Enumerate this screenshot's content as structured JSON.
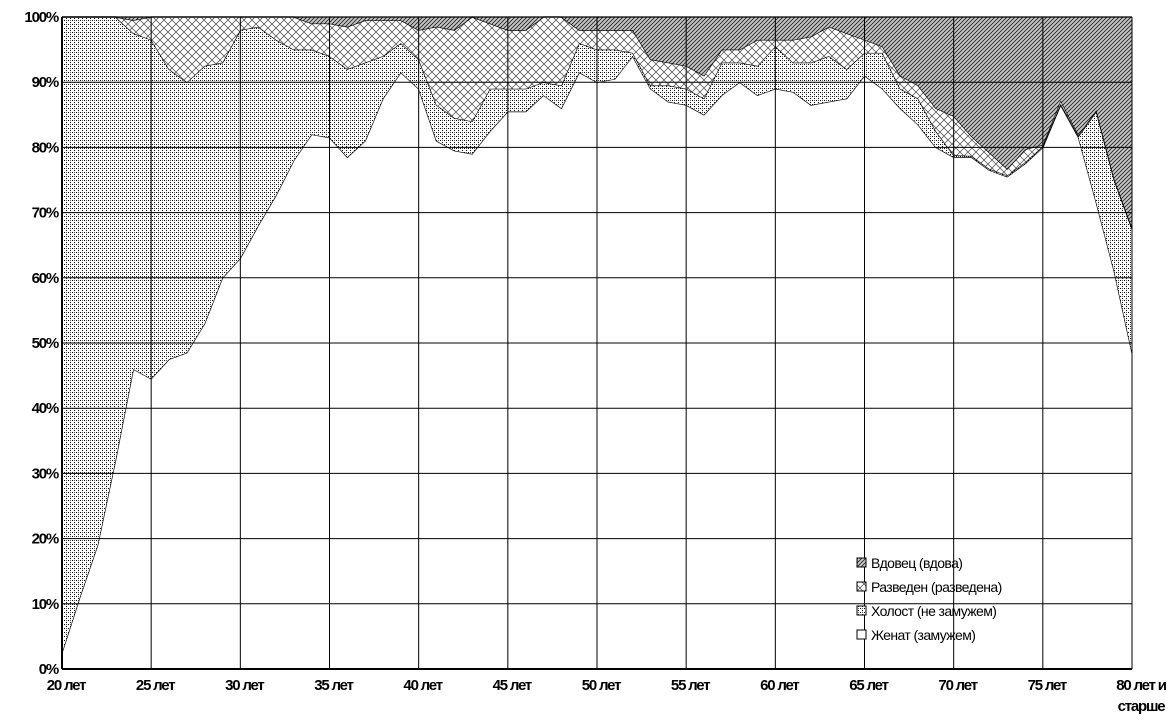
{
  "chart_data": {
    "type": "area",
    "stacked": "percent",
    "ylim": [
      0,
      100
    ],
    "y_ticks": [
      "0%",
      "10%",
      "20%",
      "30%",
      "40%",
      "50%",
      "60%",
      "70%",
      "80%",
      "90%",
      "100%"
    ],
    "x_tick_labels": [
      {
        "age": 20,
        "label": "20 лет"
      },
      {
        "age": 25,
        "label": "25 лет"
      },
      {
        "age": 30,
        "label": "30 лет"
      },
      {
        "age": 35,
        "label": "35 лет"
      },
      {
        "age": 40,
        "label": "40 лет"
      },
      {
        "age": 45,
        "label": "45 лет"
      },
      {
        "age": 50,
        "label": "50 лет"
      },
      {
        "age": 55,
        "label": "55 лет"
      },
      {
        "age": 60,
        "label": "60 лет"
      },
      {
        "age": 65,
        "label": "65 лет"
      },
      {
        "age": 70,
        "label": "70 лет"
      },
      {
        "age": 75,
        "label": "75 лет"
      },
      {
        "age": 80,
        "label": "80 лет и",
        "label2": "старше"
      }
    ],
    "grid": "horizontal and vertical",
    "legend_position": "bottom-right",
    "x": [
      20,
      21,
      22,
      23,
      24,
      25,
      26,
      27,
      28,
      29,
      30,
      31,
      32,
      33,
      34,
      35,
      36,
      37,
      38,
      39,
      40,
      41,
      42,
      43,
      44,
      45,
      46,
      47,
      48,
      49,
      50,
      51,
      52,
      53,
      54,
      55,
      56,
      57,
      58,
      59,
      60,
      61,
      62,
      63,
      64,
      65,
      66,
      67,
      68,
      69,
      70,
      71,
      72,
      73,
      74,
      75,
      76,
      77,
      78,
      79,
      80
    ],
    "series": [
      {
        "name": "Женат (замужем)",
        "pattern": "white",
        "values": [
          2.5,
          11,
          19,
          32,
          46,
          44.5,
          47.5,
          48.5,
          53,
          60,
          63,
          68,
          73,
          78,
          82,
          81.5,
          78.5,
          81,
          87.5,
          91.5,
          89,
          81,
          79.5,
          79,
          82.5,
          85.5,
          85.5,
          88,
          86,
          91.5,
          90,
          90.5,
          94,
          89,
          87,
          86.5,
          85,
          88,
          90,
          88,
          89,
          88.5,
          86.5,
          87,
          87.5,
          91,
          89,
          86,
          83.5,
          80,
          78.5,
          78.5,
          76.5,
          75.5,
          77.5,
          80,
          86.5,
          81.5,
          71.5,
          61,
          48.5
        ]
      },
      {
        "name": "Холост (не замужем)",
        "pattern": "dots",
        "values": [
          97.5,
          89,
          81,
          68,
          51.5,
          52,
          44.5,
          41.5,
          39.5,
          33,
          35,
          30.5,
          24,
          17,
          13,
          12.5,
          13.5,
          12,
          6.5,
          4.5,
          4.5,
          5.5,
          5,
          5,
          6.5,
          3.5,
          3.5,
          2,
          3.5,
          4.5,
          5,
          4.5,
          0.5,
          0.5,
          2.5,
          2.5,
          2.5,
          5,
          3,
          4.5,
          6.5,
          4.5,
          6.5,
          7,
          4.5,
          3.5,
          5.5,
          3,
          4,
          2.5,
          0.3,
          0.2,
          0.2,
          0.2,
          0.2,
          0.2,
          0.2,
          0.2,
          14,
          14,
          19
        ]
      },
      {
        "name": "Разведен (разведена)",
        "pattern": "diag-cross",
        "values": [
          0,
          0,
          0,
          0,
          2,
          3.5,
          8,
          10,
          7.5,
          7,
          2,
          1.5,
          3.5,
          5,
          4,
          5,
          6.5,
          6.5,
          5.5,
          3.5,
          4.5,
          12,
          13.5,
          16,
          10,
          9,
          9,
          10,
          10.5,
          2,
          3,
          3,
          3.5,
          4,
          3.5,
          3.5,
          3.5,
          2,
          2,
          4,
          1,
          3.5,
          4,
          4.5,
          5.5,
          2,
          1,
          2,
          2,
          3.5,
          6,
          3,
          2.5,
          1,
          2,
          0.2,
          0.5,
          0.2,
          0.2,
          0.2,
          0.2
        ]
      },
      {
        "name": "Вдовец (вдова)",
        "pattern": "hatch",
        "values": [
          0,
          0,
          0,
          0,
          0.5,
          0,
          0,
          0,
          0,
          0,
          0,
          0,
          0,
          0,
          1,
          1,
          1.5,
          0.5,
          0.5,
          0.5,
          2,
          1.5,
          2,
          0,
          1,
          2,
          2,
          0,
          0,
          2,
          2,
          2,
          2,
          6.5,
          7,
          7.5,
          9,
          5,
          5,
          3.5,
          3.5,
          3.5,
          3,
          1.5,
          2.5,
          3.5,
          4.5,
          9,
          10.5,
          14,
          15.2,
          18.3,
          20.8,
          23.3,
          20.3,
          19.6,
          12.8,
          18.1,
          14.3,
          24.8,
          32.3
        ]
      }
    ],
    "legend_order": [
      "Вдовец (вдова)",
      "Разведен (разведена)",
      "Холост (не замужем)",
      "Женат (замужем)"
    ]
  }
}
